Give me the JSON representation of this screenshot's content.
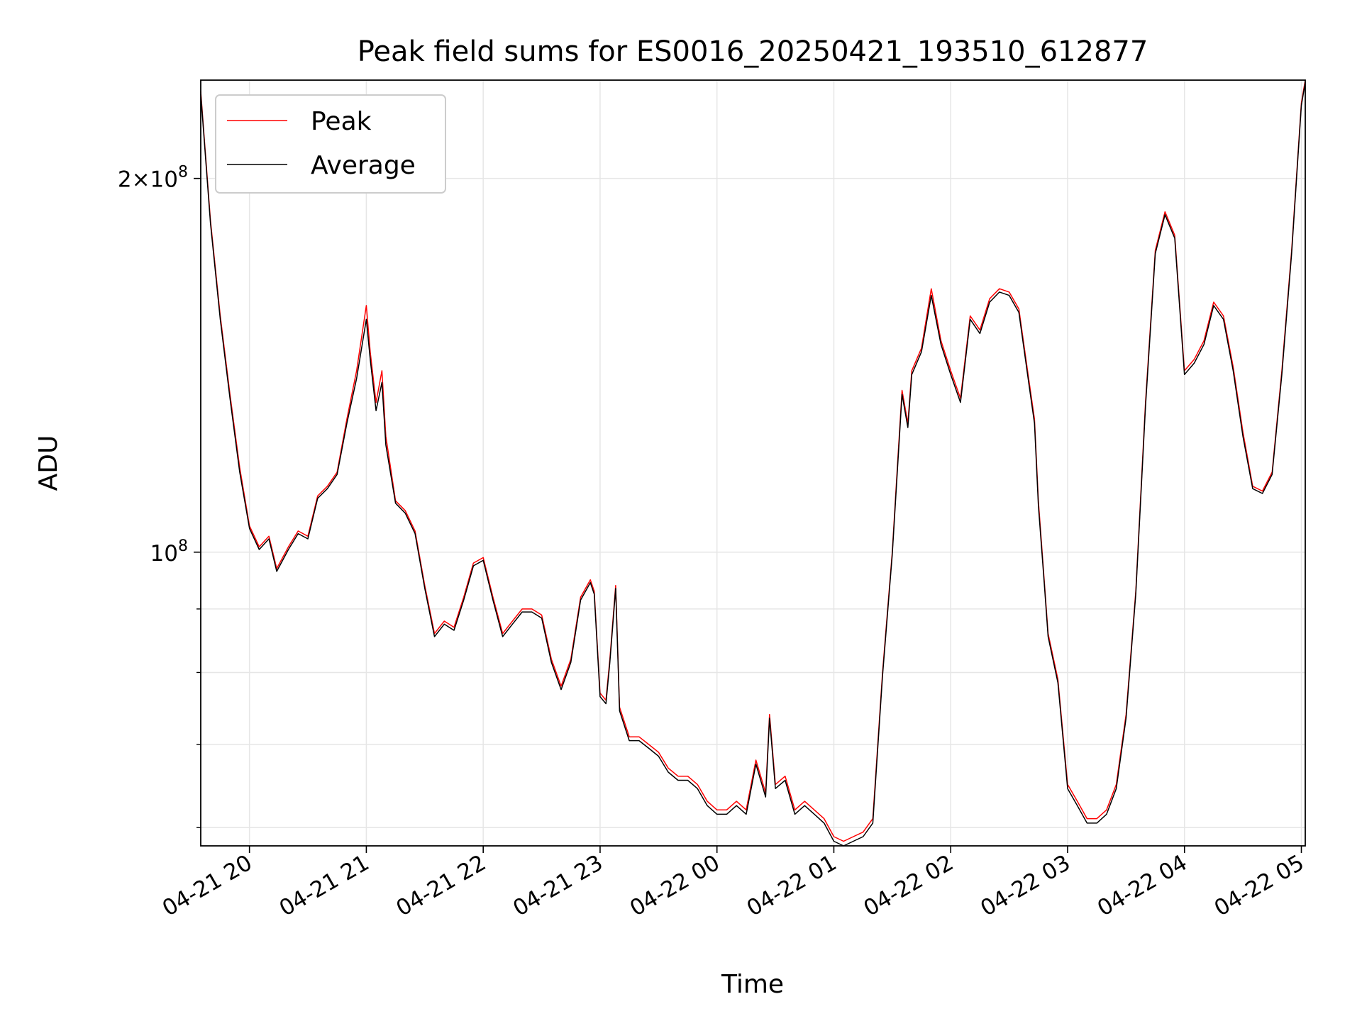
{
  "chart_data": {
    "type": "line",
    "title": "Peak field sums for ES0016_20250421_193510_612877",
    "xlabel": "Time",
    "ylabel": "ADU",
    "y_scale": "log",
    "grid": true,
    "legend_position": "upper-left",
    "xlim": [
      "2025-04-21 19:35",
      "2025-04-22 05:02"
    ],
    "ylim": [
      58000000,
      240000000
    ],
    "x_ticks": [
      "04-21 20",
      "04-21 21",
      "04-21 22",
      "04-21 23",
      "04-22 00",
      "04-22 01",
      "04-22 02",
      "04-22 03",
      "04-22 04",
      "04-22 05"
    ],
    "y_tick_labels": [
      "10^8",
      "2×10^8"
    ],
    "series": [
      {
        "name": "Peak",
        "color": "#ff0000",
        "x": [
          "2025-04-21 19:35",
          "2025-04-21 19:40",
          "2025-04-21 19:45",
          "2025-04-21 19:50",
          "2025-04-21 19:55",
          "2025-04-21 20:00",
          "2025-04-21 20:05",
          "2025-04-21 20:10",
          "2025-04-21 20:14",
          "2025-04-21 20:20",
          "2025-04-21 20:25",
          "2025-04-21 20:30",
          "2025-04-21 20:35",
          "2025-04-21 20:40",
          "2025-04-21 20:45",
          "2025-04-21 20:50",
          "2025-04-21 20:55",
          "2025-04-21 21:00",
          "2025-04-21 21:02",
          "2025-04-21 21:05",
          "2025-04-21 21:08",
          "2025-04-21 21:10",
          "2025-04-21 21:15",
          "2025-04-21 21:20",
          "2025-04-21 21:25",
          "2025-04-21 21:30",
          "2025-04-21 21:35",
          "2025-04-21 21:40",
          "2025-04-21 21:45",
          "2025-04-21 21:50",
          "2025-04-21 21:55",
          "2025-04-21 22:00",
          "2025-04-21 22:05",
          "2025-04-21 22:10",
          "2025-04-21 22:15",
          "2025-04-21 22:20",
          "2025-04-21 22:25",
          "2025-04-21 22:30",
          "2025-04-21 22:35",
          "2025-04-21 22:40",
          "2025-04-21 22:45",
          "2025-04-21 22:50",
          "2025-04-21 22:55",
          "2025-04-21 22:57",
          "2025-04-21 23:00",
          "2025-04-21 23:03",
          "2025-04-21 23:05",
          "2025-04-21 23:08",
          "2025-04-21 23:10",
          "2025-04-21 23:15",
          "2025-04-21 23:20",
          "2025-04-21 23:25",
          "2025-04-21 23:30",
          "2025-04-21 23:35",
          "2025-04-21 23:40",
          "2025-04-21 23:45",
          "2025-04-21 23:50",
          "2025-04-21 23:55",
          "2025-04-22 00:00",
          "2025-04-22 00:05",
          "2025-04-22 00:10",
          "2025-04-22 00:15",
          "2025-04-22 00:20",
          "2025-04-22 00:25",
          "2025-04-22 00:27",
          "2025-04-22 00:30",
          "2025-04-22 00:35",
          "2025-04-22 00:40",
          "2025-04-22 00:45",
          "2025-04-22 00:50",
          "2025-04-22 00:55",
          "2025-04-22 01:00",
          "2025-04-22 01:05",
          "2025-04-22 01:10",
          "2025-04-22 01:15",
          "2025-04-22 01:20",
          "2025-04-22 01:25",
          "2025-04-22 01:30",
          "2025-04-22 01:33",
          "2025-04-22 01:35",
          "2025-04-22 01:38",
          "2025-04-22 01:40",
          "2025-04-22 01:45",
          "2025-04-22 01:50",
          "2025-04-22 01:55",
          "2025-04-22 02:00",
          "2025-04-22 02:05",
          "2025-04-22 02:10",
          "2025-04-22 02:15",
          "2025-04-22 02:20",
          "2025-04-22 02:25",
          "2025-04-22 02:30",
          "2025-04-22 02:35",
          "2025-04-22 02:40",
          "2025-04-22 02:43",
          "2025-04-22 02:45",
          "2025-04-22 02:48",
          "2025-04-22 02:50",
          "2025-04-22 02:55",
          "2025-04-22 03:00",
          "2025-04-22 03:05",
          "2025-04-22 03:10",
          "2025-04-22 03:15",
          "2025-04-22 03:20",
          "2025-04-22 03:25",
          "2025-04-22 03:30",
          "2025-04-22 03:35",
          "2025-04-22 03:40",
          "2025-04-22 03:45",
          "2025-04-22 03:50",
          "2025-04-22 03:55",
          "2025-04-22 04:00",
          "2025-04-22 04:05",
          "2025-04-22 04:10",
          "2025-04-22 04:15",
          "2025-04-22 04:20",
          "2025-04-22 04:25",
          "2025-04-22 04:30",
          "2025-04-22 04:35",
          "2025-04-22 04:40",
          "2025-04-22 04:45",
          "2025-04-22 04:50",
          "2025-04-22 04:55",
          "2025-04-22 05:00",
          "2025-04-22 05:02"
        ],
        "y": [
          235000000,
          185000000,
          155000000,
          134000000,
          117000000,
          105000000,
          101000000,
          103000000,
          97000000,
          101000000,
          104000000,
          103000000,
          111000000,
          113000000,
          116000000,
          128000000,
          140000000,
          158000000,
          145000000,
          132000000,
          140000000,
          124000000,
          110000000,
          108000000,
          104000000,
          94000000,
          86000000,
          88000000,
          87000000,
          92000000,
          98000000,
          99000000,
          92000000,
          86000000,
          88000000,
          90000000,
          90000000,
          89000000,
          82000000,
          78000000,
          82000000,
          92000000,
          95000000,
          93000000,
          77000000,
          76000000,
          82000000,
          94000000,
          75000000,
          71000000,
          71000000,
          70000000,
          69000000,
          67000000,
          66000000,
          66000000,
          65000000,
          63000000,
          62000000,
          62000000,
          63000000,
          62000000,
          68000000,
          64000000,
          74000000,
          65000000,
          66000000,
          62000000,
          63000000,
          62000000,
          61000000,
          59000000,
          58500000,
          59000000,
          59500000,
          61000000,
          80000000,
          100000000,
          120000000,
          135000000,
          127000000,
          140000000,
          146000000,
          163000000,
          148000000,
          140000000,
          133000000,
          155000000,
          151000000,
          160000000,
          163000000,
          162000000,
          157000000,
          138000000,
          128000000,
          110000000,
          95000000,
          86000000,
          79000000,
          65000000,
          63000000,
          61000000,
          61000000,
          62000000,
          65000000,
          74000000,
          93000000,
          132000000,
          175000000,
          188000000,
          180000000,
          140000000,
          143000000,
          148000000,
          159000000,
          155000000,
          141000000,
          125000000,
          113000000,
          112000000,
          116000000,
          140000000,
          175000000,
          230000000,
          240000000
        ]
      },
      {
        "name": "Average",
        "color": "#000000",
        "x": [
          "2025-04-21 19:35",
          "2025-04-21 19:40",
          "2025-04-21 19:45",
          "2025-04-21 19:50",
          "2025-04-21 19:55",
          "2025-04-21 20:00",
          "2025-04-21 20:05",
          "2025-04-21 20:10",
          "2025-04-21 20:14",
          "2025-04-21 20:20",
          "2025-04-21 20:25",
          "2025-04-21 20:30",
          "2025-04-21 20:35",
          "2025-04-21 20:40",
          "2025-04-21 20:45",
          "2025-04-21 20:50",
          "2025-04-21 20:55",
          "2025-04-21 21:00",
          "2025-04-21 21:02",
          "2025-04-21 21:05",
          "2025-04-21 21:08",
          "2025-04-21 21:10",
          "2025-04-21 21:15",
          "2025-04-21 21:20",
          "2025-04-21 21:25",
          "2025-04-21 21:30",
          "2025-04-21 21:35",
          "2025-04-21 21:40",
          "2025-04-21 21:45",
          "2025-04-21 21:50",
          "2025-04-21 21:55",
          "2025-04-21 22:00",
          "2025-04-21 22:05",
          "2025-04-21 22:10",
          "2025-04-21 22:15",
          "2025-04-21 22:20",
          "2025-04-21 22:25",
          "2025-04-21 22:30",
          "2025-04-21 22:35",
          "2025-04-21 22:40",
          "2025-04-21 22:45",
          "2025-04-21 22:50",
          "2025-04-21 22:55",
          "2025-04-21 22:57",
          "2025-04-21 23:00",
          "2025-04-21 23:03",
          "2025-04-21 23:05",
          "2025-04-21 23:08",
          "2025-04-21 23:10",
          "2025-04-21 23:15",
          "2025-04-21 23:20",
          "2025-04-21 23:25",
          "2025-04-21 23:30",
          "2025-04-21 23:35",
          "2025-04-21 23:40",
          "2025-04-21 23:45",
          "2025-04-21 23:50",
          "2025-04-21 23:55",
          "2025-04-22 00:00",
          "2025-04-22 00:05",
          "2025-04-22 00:10",
          "2025-04-22 00:15",
          "2025-04-22 00:20",
          "2025-04-22 00:25",
          "2025-04-22 00:27",
          "2025-04-22 00:30",
          "2025-04-22 00:35",
          "2025-04-22 00:40",
          "2025-04-22 00:45",
          "2025-04-22 00:50",
          "2025-04-22 00:55",
          "2025-04-22 01:00",
          "2025-04-22 01:05",
          "2025-04-22 01:10",
          "2025-04-22 01:15",
          "2025-04-22 01:20",
          "2025-04-22 01:25",
          "2025-04-22 01:30",
          "2025-04-22 01:33",
          "2025-04-22 01:35",
          "2025-04-22 01:38",
          "2025-04-22 01:40",
          "2025-04-22 01:45",
          "2025-04-22 01:50",
          "2025-04-22 01:55",
          "2025-04-22 02:00",
          "2025-04-22 02:05",
          "2025-04-22 02:10",
          "2025-04-22 02:15",
          "2025-04-22 02:20",
          "2025-04-22 02:25",
          "2025-04-22 02:30",
          "2025-04-22 02:35",
          "2025-04-22 02:40",
          "2025-04-22 02:43",
          "2025-04-22 02:45",
          "2025-04-22 02:48",
          "2025-04-22 02:50",
          "2025-04-22 02:55",
          "2025-04-22 03:00",
          "2025-04-22 03:05",
          "2025-04-22 03:10",
          "2025-04-22 03:15",
          "2025-04-22 03:20",
          "2025-04-22 03:25",
          "2025-04-22 03:30",
          "2025-04-22 03:35",
          "2025-04-22 03:40",
          "2025-04-22 03:45",
          "2025-04-22 03:50",
          "2025-04-22 03:55",
          "2025-04-22 04:00",
          "2025-04-22 04:05",
          "2025-04-22 04:10",
          "2025-04-22 04:15",
          "2025-04-22 04:20",
          "2025-04-22 04:25",
          "2025-04-22 04:30",
          "2025-04-22 04:35",
          "2025-04-22 04:40",
          "2025-04-22 04:45",
          "2025-04-22 04:50",
          "2025-04-22 04:55",
          "2025-04-22 05:00",
          "2025-04-22 05:02"
        ],
        "y": [
          234000000,
          184000000,
          154000000,
          133000000,
          116000000,
          104500000,
          100500000,
          102500000,
          96500000,
          100500000,
          103500000,
          102500000,
          110500000,
          112500000,
          115500000,
          127000000,
          138000000,
          154000000,
          143000000,
          130000000,
          137000000,
          122000000,
          109500000,
          107500000,
          103500000,
          93500000,
          85500000,
          87500000,
          86500000,
          91500000,
          97500000,
          98500000,
          91500000,
          85500000,
          87500000,
          89500000,
          89500000,
          88500000,
          81500000,
          77500000,
          81500000,
          91500000,
          94500000,
          92500000,
          76500000,
          75500000,
          81500000,
          93500000,
          74500000,
          70500000,
          70500000,
          69500000,
          68500000,
          66500000,
          65500000,
          65500000,
          64500000,
          62500000,
          61500000,
          61500000,
          62500000,
          61500000,
          67500000,
          63500000,
          73500000,
          64500000,
          65500000,
          61500000,
          62500000,
          61500000,
          60500000,
          58500000,
          58000000,
          58500000,
          59000000,
          60500000,
          79500000,
          99500000,
          119000000,
          134000000,
          126000000,
          139000000,
          145000000,
          161000000,
          147000000,
          139000000,
          132000000,
          154000000,
          150000000,
          159000000,
          162000000,
          161000000,
          156000000,
          137000000,
          127000000,
          109000000,
          94500000,
          85500000,
          78500000,
          64500000,
          62500000,
          60500000,
          60500000,
          61500000,
          64500000,
          73500000,
          92500000,
          131000000,
          174000000,
          187000000,
          179000000,
          139000000,
          142000000,
          147000000,
          158000000,
          154000000,
          140000000,
          124000000,
          112500000,
          111500000,
          115500000,
          139000000,
          174000000,
          229000000,
          239000000
        ]
      }
    ]
  }
}
